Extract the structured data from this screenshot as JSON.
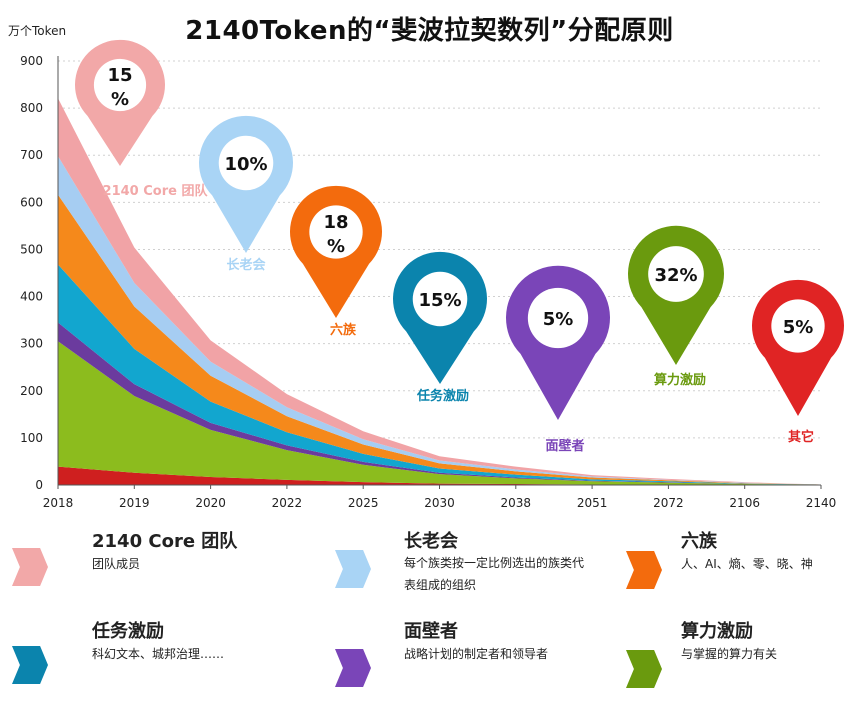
{
  "title": "2140Token的“斐波拉契数列”分配原则",
  "unit_label": "万个Token",
  "colors": {
    "core": "#f2a8a8",
    "elders": "#a9d4f5",
    "six": "#f36b0d",
    "task": "#0b84ad",
    "wall": "#7a45b8",
    "power": "#6a9a0e",
    "other": "#e02424",
    "area_core": "#f1a3a6",
    "area_elders": "#a6cdf2",
    "area_six": "#f5891b",
    "area_task": "#12a6cf",
    "area_wall": "#6b3b9e",
    "area_power": "#8cbc1e",
    "area_other": "#cf1f1f"
  },
  "chart_data": {
    "type": "area",
    "stacked": true,
    "categories": [
      "2018",
      "2019",
      "2020",
      "2022",
      "2025",
      "2030",
      "2038",
      "2051",
      "2072",
      "2106",
      "2140"
    ],
    "yticks": [
      "0",
      "100",
      "200",
      "300",
      "400",
      "500",
      "600",
      "700",
      "800",
      "900"
    ],
    "ylim": [
      0,
      900
    ],
    "xlabel": "",
    "ylabel": "万个Token",
    "series": [
      {
        "name": "其它",
        "color_key": "area_other",
        "values": [
          39,
          26,
          17,
          11,
          6,
          3,
          2,
          1,
          1,
          0,
          0
        ]
      },
      {
        "name": "算力激励",
        "color_key": "area_power",
        "values": [
          266,
          163,
          100,
          63,
          37,
          20,
          12,
          7,
          4,
          2,
          1
        ]
      },
      {
        "name": "面壁者",
        "color_key": "area_wall",
        "values": [
          40,
          25,
          15,
          10,
          6,
          3,
          2,
          1,
          1,
          0,
          0
        ]
      },
      {
        "name": "任务激励",
        "color_key": "area_task",
        "values": [
          123,
          75,
          45,
          28,
          17,
          9,
          6,
          3,
          2,
          1,
          0
        ]
      },
      {
        "name": "六族",
        "color_key": "area_six",
        "values": [
          148,
          90,
          55,
          34,
          20,
          11,
          7,
          4,
          2,
          1,
          0
        ]
      },
      {
        "name": "长老会",
        "color_key": "area_elders",
        "values": [
          82,
          50,
          30,
          19,
          11,
          6,
          4,
          2,
          1,
          1,
          0
        ]
      },
      {
        "name": "2140 Core 团队",
        "color_key": "area_core",
        "values": [
          123,
          75,
          45,
          28,
          17,
          9,
          6,
          3,
          2,
          1,
          0
        ]
      }
    ],
    "markers": [
      {
        "name": "2140 Core 团队",
        "percent_line1": "15",
        "percent_line2": "%",
        "label": "2140 Core 团队",
        "color_key": "core"
      },
      {
        "name": "长老会",
        "percent_line1": "10%",
        "percent_line2": "",
        "label": "长老会",
        "color_key": "elders"
      },
      {
        "name": "六族",
        "percent_line1": "18",
        "percent_line2": "%",
        "label": "六族",
        "color_key": "six"
      },
      {
        "name": "任务激励",
        "percent_line1": "15%",
        "percent_line2": "",
        "label": "任务激励",
        "color_key": "task"
      },
      {
        "name": "面壁者",
        "percent_line1": "5%",
        "percent_line2": "",
        "label": "面壁者",
        "color_key": "wall"
      },
      {
        "name": "算力激励",
        "percent_line1": "32%",
        "percent_line2": "",
        "label": "算力激励",
        "color_key": "power"
      },
      {
        "name": "其它",
        "percent_line1": "5%",
        "percent_line2": "",
        "label": "其它",
        "color_key": "other"
      }
    ]
  },
  "legend": [
    {
      "title": "2140 Core 团队",
      "desc": "团队成员",
      "color_key": "core"
    },
    {
      "title": "长老会",
      "desc": "每个族类按一定比例选出的族类代表组成的组织",
      "color_key": "elders"
    },
    {
      "title": "六族",
      "desc": "人、AI、熵、零、晓、神",
      "color_key": "six"
    },
    {
      "title": "任务激励",
      "desc": "科幻文本、城邦治理……",
      "color_key": "task"
    },
    {
      "title": "面壁者",
      "desc": "战略计划的制定者和领导者",
      "color_key": "wall"
    },
    {
      "title": "算力激励",
      "desc": "与掌握的算力有关",
      "color_key": "power"
    }
  ]
}
